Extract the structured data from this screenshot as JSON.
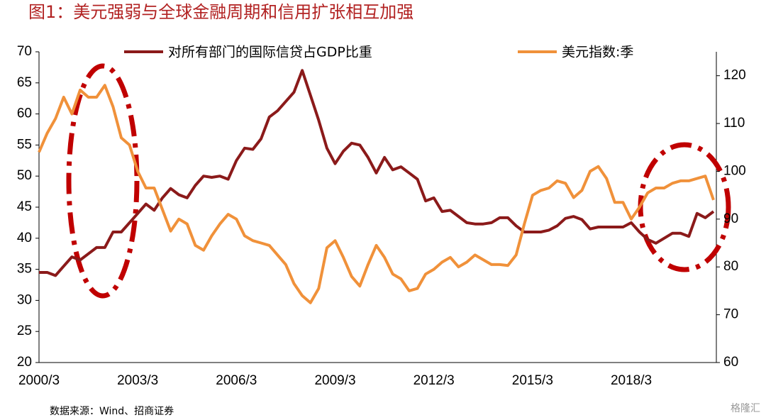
{
  "chart_data": {
    "type": "line",
    "title": "图1：美元强弱与全球金融周期和信用扩张相互加强",
    "source": "数据来源：Wind、招商证券",
    "watermark": "格隆汇",
    "categories": [
      "2000/3",
      null,
      null,
      null,
      null,
      null,
      null,
      null,
      null,
      null,
      null,
      null,
      "2003/3",
      null,
      null,
      null,
      null,
      null,
      null,
      null,
      null,
      null,
      null,
      null,
      "2006/3",
      null,
      null,
      null,
      null,
      null,
      null,
      null,
      null,
      null,
      null,
      null,
      "2009/3",
      null,
      null,
      null,
      null,
      null,
      null,
      null,
      null,
      null,
      null,
      null,
      "2012/3",
      null,
      null,
      null,
      null,
      null,
      null,
      null,
      null,
      null,
      null,
      null,
      "2015/3",
      null,
      null,
      null,
      null,
      null,
      null,
      null,
      null,
      null,
      null,
      null,
      "2018/3",
      null,
      null,
      null,
      null,
      null,
      null,
      null,
      null,
      null,
      null
    ],
    "series": [
      {
        "name": "对所有部门的国际信贷占GDP比重",
        "color": "#8b1a1a",
        "axis": "y",
        "values": [
          34.5,
          34.5,
          34,
          35.5,
          37,
          36.5,
          37.5,
          38.5,
          38.5,
          41,
          41,
          42.5,
          44,
          45.5,
          44.5,
          46.5,
          48,
          47,
          46.5,
          48.5,
          50,
          49.8,
          50,
          49.5,
          52.5,
          54.5,
          54.3,
          56,
          59.5,
          60.5,
          62,
          63.5,
          67,
          63,
          59,
          54.5,
          52,
          54,
          55.3,
          55,
          53,
          50.5,
          53,
          51,
          51.5,
          50.5,
          49.5,
          46,
          46.5,
          44.3,
          44.5,
          43.5,
          42.5,
          42.3,
          42.3,
          42.5,
          43.3,
          43.3,
          42,
          41,
          41,
          41,
          41.3,
          42,
          43.2,
          43.5,
          43,
          41.5,
          41.8,
          41.8,
          41.8,
          41.8,
          42.5,
          41,
          39.8,
          39.2,
          40,
          40.8,
          40.8,
          40.3,
          44,
          43.3,
          44.3
        ]
      },
      {
        "name": "美元指数:季",
        "color": "#f0913a",
        "axis": "y2",
        "values": [
          104,
          108,
          111,
          115.5,
          112,
          117,
          115.5,
          115.5,
          118,
          113.5,
          107,
          105.5,
          100,
          96.5,
          96.5,
          92,
          87.5,
          90,
          89,
          84.5,
          83.5,
          86.5,
          89,
          91,
          90,
          86.5,
          85.5,
          85,
          84.5,
          82.5,
          80.5,
          76.5,
          74,
          72.5,
          75.5,
          84,
          85.5,
          82,
          78,
          76,
          80.5,
          84.5,
          82,
          78.5,
          77.5,
          75,
          75.5,
          78.5,
          79.5,
          81,
          82,
          80,
          81,
          82.5,
          81.5,
          80.5,
          80.5,
          80.3,
          82.5,
          89,
          95,
          96,
          96.5,
          98,
          97.5,
          94.5,
          96,
          100,
          101,
          98.5,
          93.5,
          93.5,
          90,
          92.5,
          95.5,
          96.5,
          96.5,
          97.5,
          98,
          98,
          98.5,
          99,
          94
        ]
      }
    ],
    "ylim": [
      20,
      70
    ],
    "yticks": [
      20,
      25,
      30,
      35,
      40,
      45,
      50,
      55,
      60,
      65,
      70
    ],
    "y2lim": [
      60,
      125
    ],
    "y2ticks": [
      60,
      70,
      80,
      90,
      100,
      110,
      120
    ],
    "legend": "top"
  }
}
